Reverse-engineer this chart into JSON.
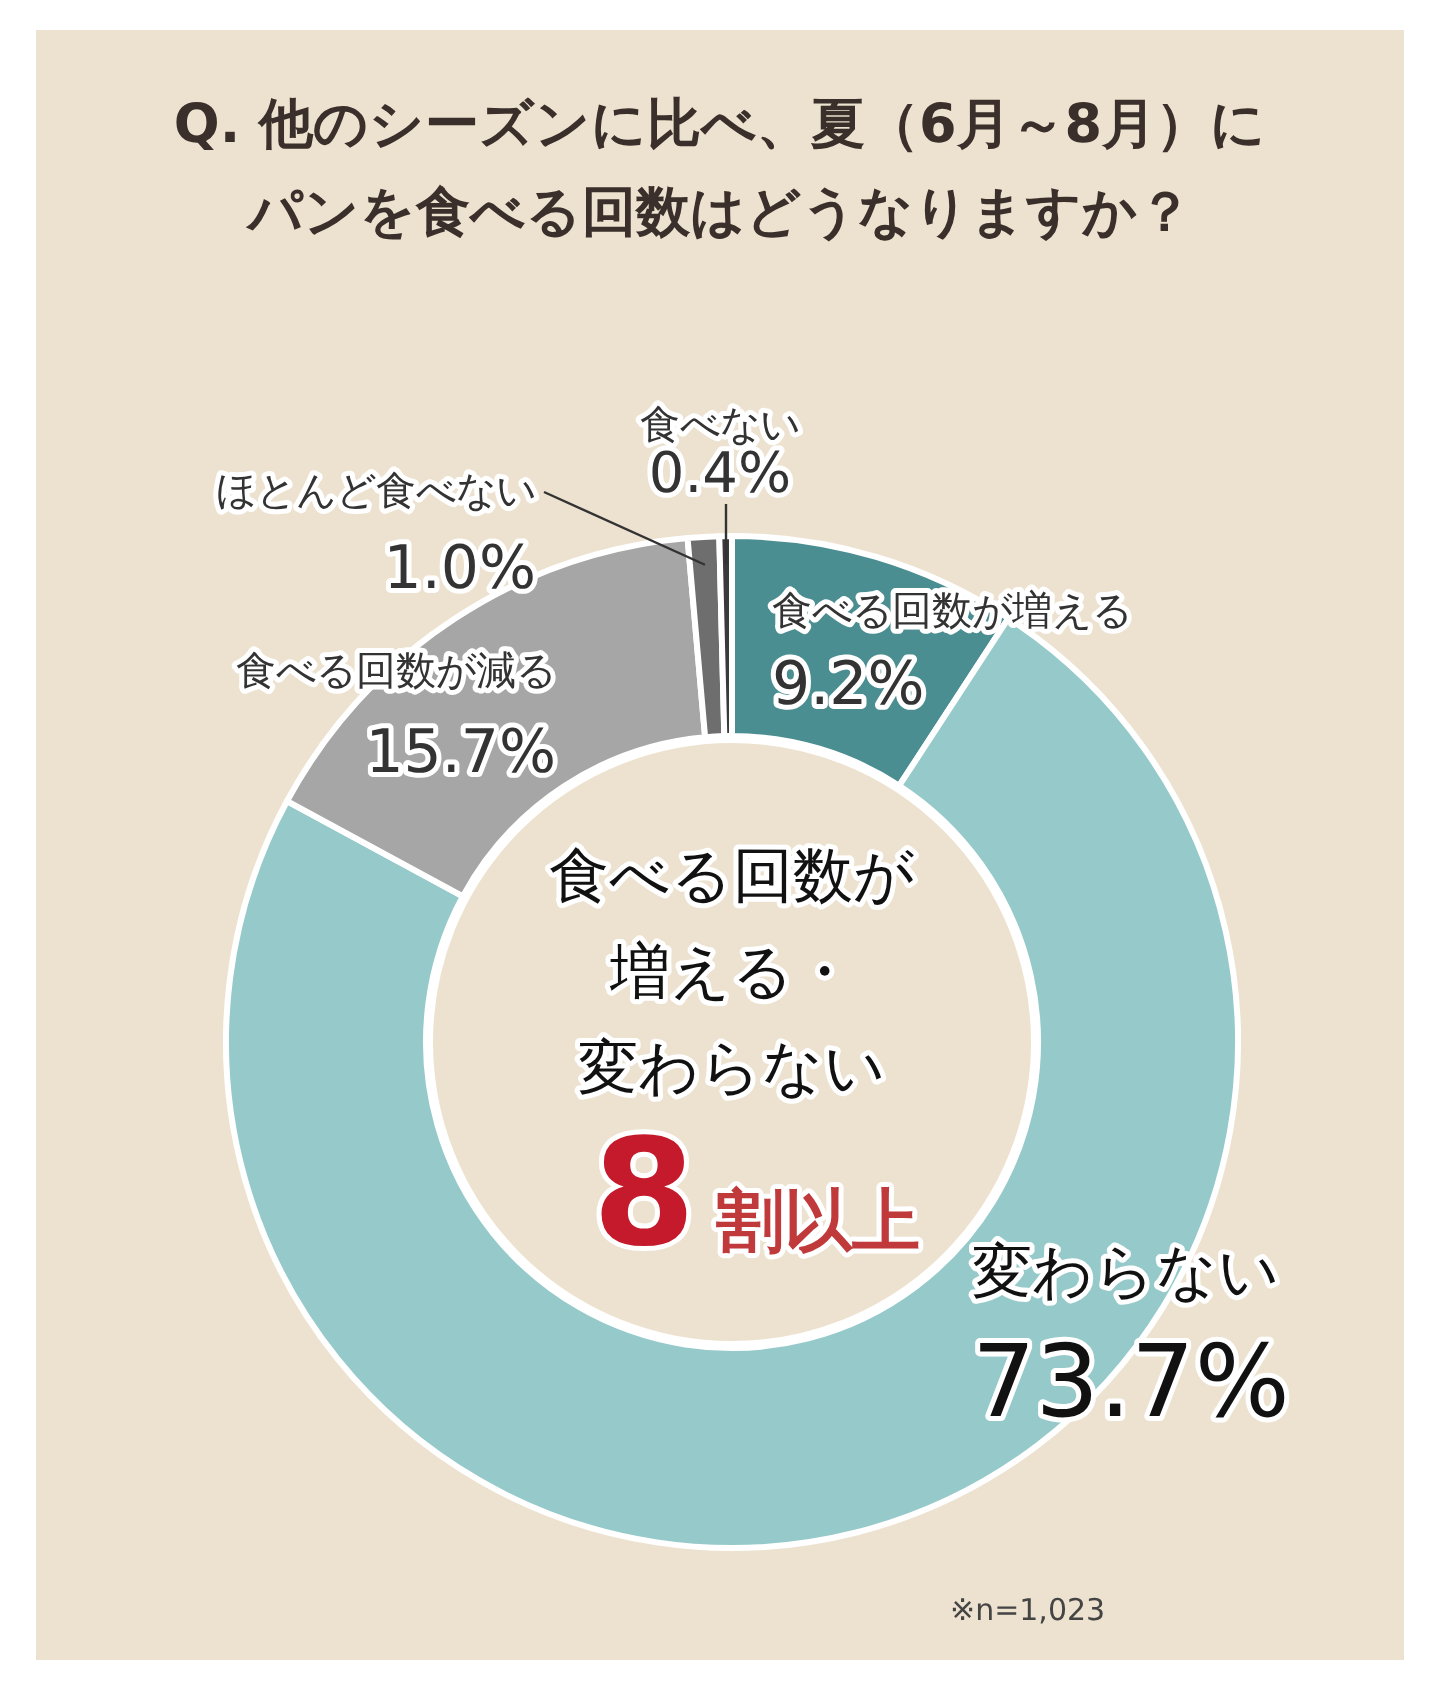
{
  "chart_data": {
    "type": "donut",
    "title": "Q. 他のシーズンに比べ、夏（6月～8月）にパンを食べる回数はどうなりますか？",
    "categories": [
      "食べる回数が増える",
      "変わらない",
      "食べる回数が減る",
      "ほとんど食べない",
      "食べない"
    ],
    "values": [
      9.2,
      73.7,
      15.7,
      1.0,
      0.4
    ],
    "colors": [
      "#4b8e92",
      "#96caca",
      "#a6a6a6",
      "#6e6e6e",
      "#3a3a3a"
    ],
    "value_labels": [
      "9.2%",
      "73.7%",
      "15.7%",
      "1.0%",
      "0.4%"
    ],
    "annotations": [
      "食べる回数が",
      "増える・",
      "変わらない",
      "8割以上",
      "※n=1,023"
    ]
  }
}
